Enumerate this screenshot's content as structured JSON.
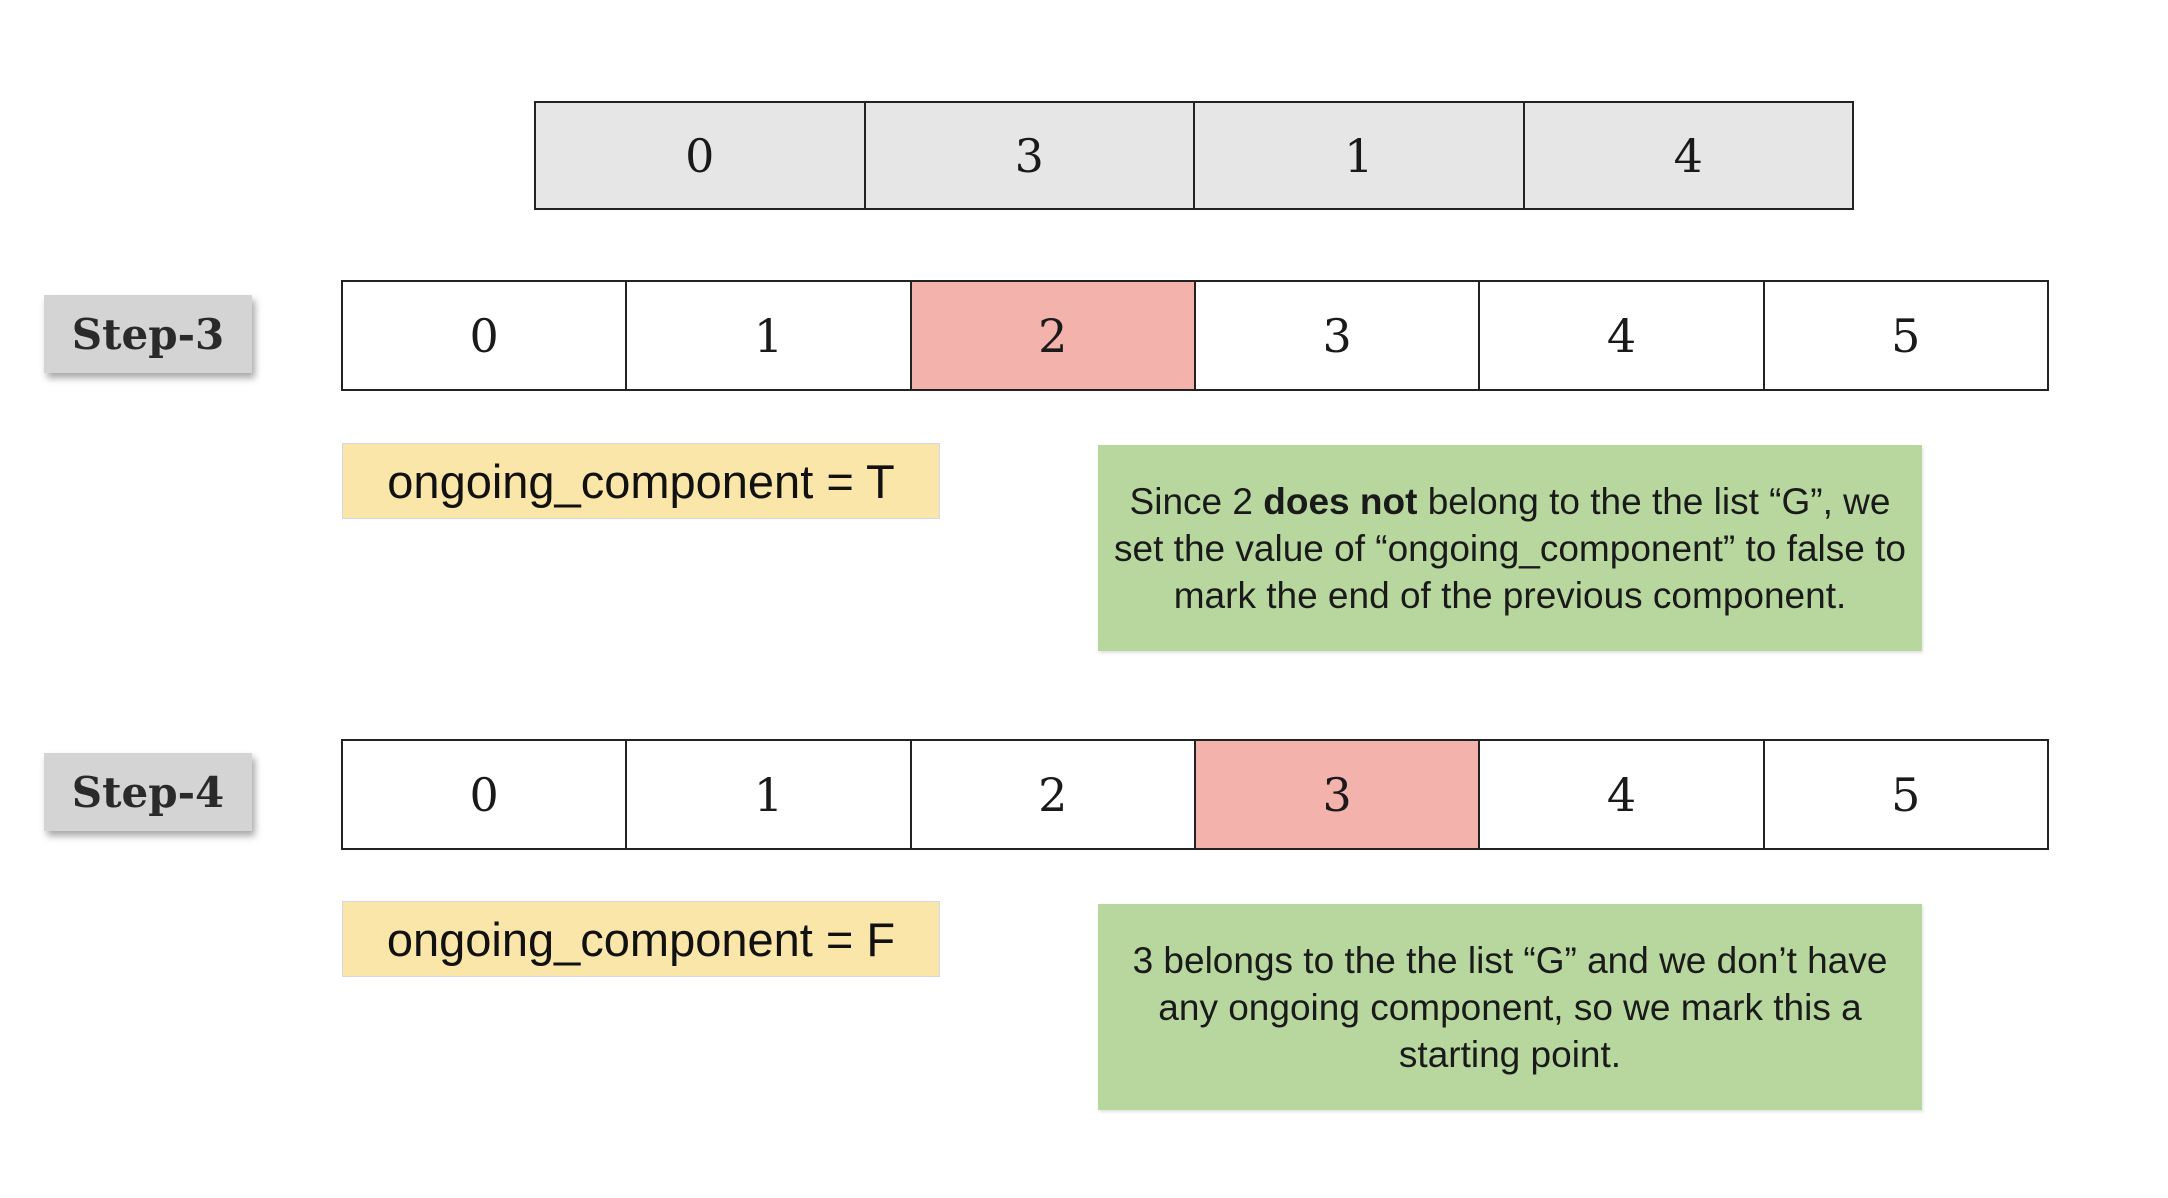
{
  "top_array": {
    "values": [
      "0",
      "3",
      "1",
      "4"
    ]
  },
  "step3": {
    "label": "Step-3",
    "indices": [
      "0",
      "1",
      "2",
      "3",
      "4",
      "5"
    ],
    "highlighted_index": 2,
    "status": "ongoing_component = T",
    "note": {
      "part1": "Since 2 ",
      "bold": "does not",
      "part2": " belong to the the list “G”, we set the value of “ongoing_component” to false to mark the end of the previous component."
    }
  },
  "step4": {
    "label": "Step-4",
    "indices": [
      "0",
      "1",
      "2",
      "3",
      "4",
      "5"
    ],
    "highlighted_index": 3,
    "status": "ongoing_component = F",
    "note": {
      "text": "3 belongs to the the list “G” and we don’t have any ongoing component, so we mark this a starting point."
    }
  },
  "colors": {
    "top_cell": "#e6e6e6",
    "highlight": "#f4b2ad",
    "status_bg": "#fbe6a9",
    "note_bg": "#b7d79f",
    "step_label_bg": "#d4d4d4"
  }
}
